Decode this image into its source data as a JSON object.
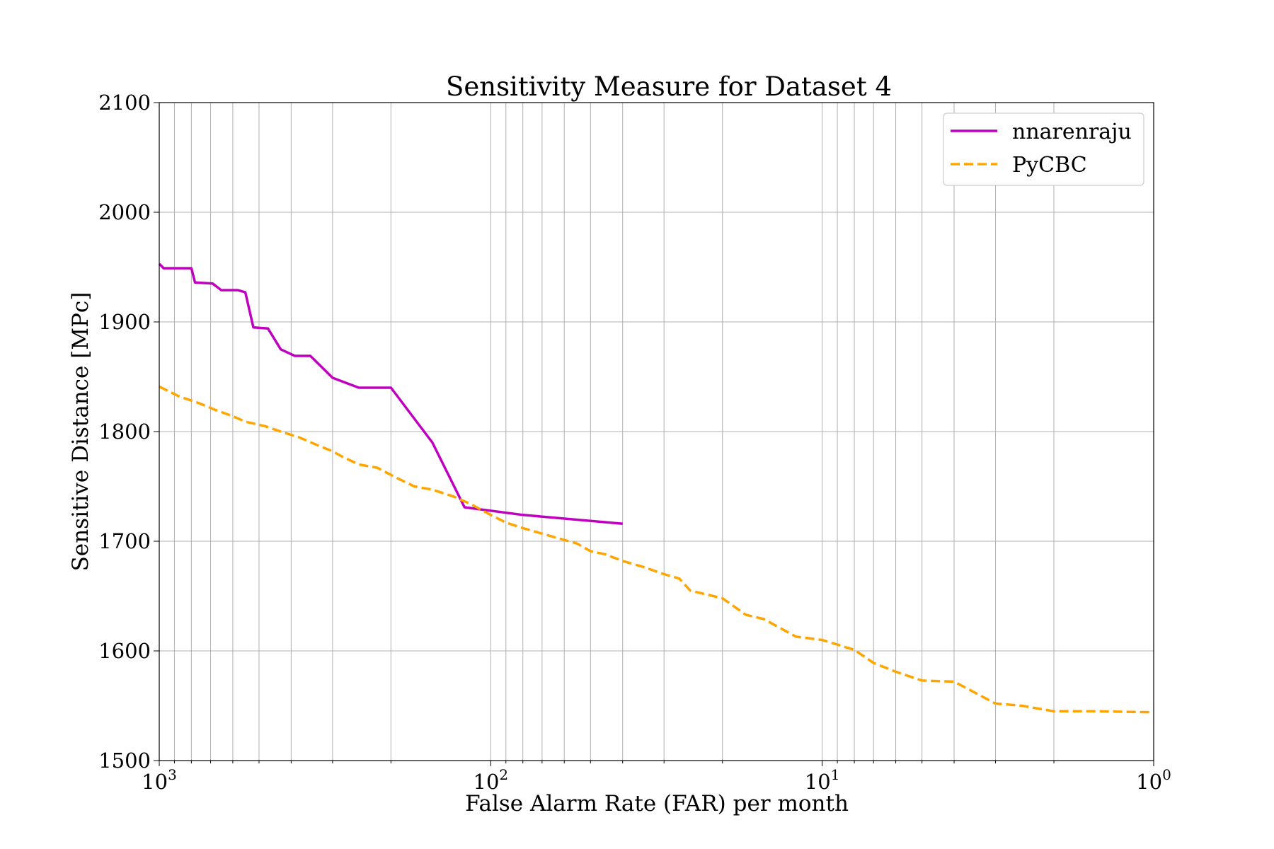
{
  "chart_data": {
    "type": "line",
    "title": "Sensitivity Measure for Dataset 4",
    "xlabel": "False Alarm Rate (FAR) per month",
    "ylabel": "Sensitive Distance [MPc]",
    "x_scale": "log",
    "x_inverted": true,
    "xlim": [
      1000,
      1
    ],
    "ylim": [
      1500,
      2100
    ],
    "x_ticks": [
      {
        "base": "10",
        "exp": "3",
        "value": 1000
      },
      {
        "base": "10",
        "exp": "2",
        "value": 100
      },
      {
        "base": "10",
        "exp": "1",
        "value": 10
      },
      {
        "base": "10",
        "exp": "0",
        "value": 1
      }
    ],
    "y_ticks": [
      "1500",
      "1600",
      "1700",
      "1800",
      "1900",
      "2000",
      "2100"
    ],
    "grid": true,
    "legend_position": "top-right",
    "series": [
      {
        "name": "nnarenraju",
        "color": "#bf00bf",
        "style": "solid",
        "points": [
          [
            1000,
            1953
          ],
          [
            970,
            1949
          ],
          [
            950,
            1949
          ],
          [
            800,
            1949
          ],
          [
            780,
            1936
          ],
          [
            690,
            1935
          ],
          [
            650,
            1929
          ],
          [
            580,
            1929
          ],
          [
            550,
            1927
          ],
          [
            520,
            1895
          ],
          [
            470,
            1894
          ],
          [
            430,
            1875
          ],
          [
            390,
            1869
          ],
          [
            350,
            1869
          ],
          [
            300,
            1849
          ],
          [
            250,
            1840
          ],
          [
            200,
            1840
          ],
          [
            150,
            1790
          ],
          [
            120,
            1731
          ],
          [
            80,
            1724
          ],
          [
            40,
            1716
          ]
        ]
      },
      {
        "name": "PyCBC",
        "color": "#ffa500",
        "style": "dashed",
        "points": [
          [
            1000,
            1841
          ],
          [
            870,
            1832
          ],
          [
            760,
            1826
          ],
          [
            680,
            1820
          ],
          [
            600,
            1814
          ],
          [
            550,
            1809
          ],
          [
            480,
            1805
          ],
          [
            430,
            1800
          ],
          [
            380,
            1795
          ],
          [
            330,
            1787
          ],
          [
            300,
            1782
          ],
          [
            280,
            1777
          ],
          [
            250,
            1770
          ],
          [
            220,
            1767
          ],
          [
            190,
            1757
          ],
          [
            170,
            1750
          ],
          [
            150,
            1747
          ],
          [
            130,
            1741
          ],
          [
            115,
            1734
          ],
          [
            100,
            1724
          ],
          [
            90,
            1717
          ],
          [
            80,
            1712
          ],
          [
            72,
            1708
          ],
          [
            63,
            1703
          ],
          [
            55,
            1698
          ],
          [
            50,
            1691
          ],
          [
            45,
            1688
          ],
          [
            40,
            1682
          ],
          [
            35,
            1677
          ],
          [
            30,
            1670
          ],
          [
            27,
            1666
          ],
          [
            25,
            1655
          ],
          [
            20,
            1648
          ],
          [
            17,
            1633
          ],
          [
            15,
            1629
          ],
          [
            12,
            1613
          ],
          [
            10,
            1610
          ],
          [
            8,
            1601
          ],
          [
            7,
            1589
          ],
          [
            6,
            1581
          ],
          [
            5,
            1573
          ],
          [
            4,
            1572
          ],
          [
            3,
            1552
          ],
          [
            2.5,
            1550
          ],
          [
            2,
            1545
          ],
          [
            1.5,
            1545
          ],
          [
            1,
            1544
          ]
        ]
      }
    ]
  }
}
